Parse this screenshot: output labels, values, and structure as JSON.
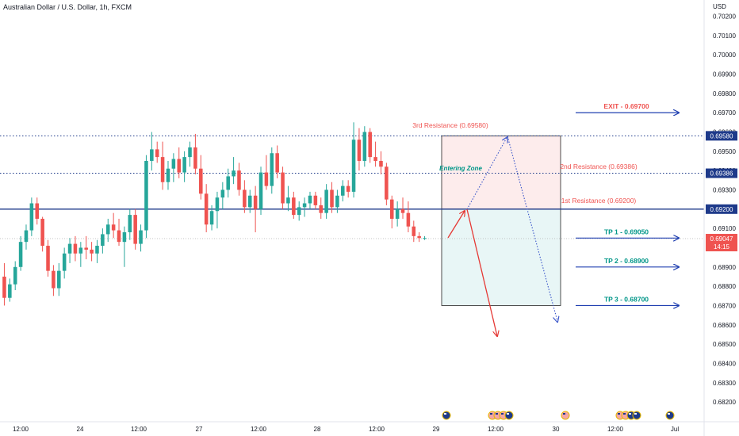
{
  "title": "Australian Dollar / U.S. Dollar, 1h, FXCM",
  "price_axis_label": "USD",
  "colors": {
    "up": "#26a69a",
    "down": "#ef5350",
    "level_line": "#1e3a8a",
    "arrow_blue": "#1f3fb0",
    "arrow_red": "#e53935",
    "zone_red": "#fdecec",
    "zone_green": "#e8f6f6",
    "label_red": "#ef5350",
    "label_teal": "#009688",
    "dotted_blue": "#3a55c9"
  },
  "chart_data": {
    "type": "candlestick",
    "title": "Australian Dollar / U.S. Dollar, 1h, FXCM",
    "ylim": [
      0.6815,
      0.7025
    ],
    "y_ticks": [
      "0.70200",
      "0.70100",
      "0.70000",
      "0.69900",
      "0.69800",
      "0.69700",
      "0.69600",
      "0.69500",
      "0.69400",
      "0.69300",
      "0.69200",
      "0.69100",
      "0.69000",
      "0.68900",
      "0.68800",
      "0.68700",
      "0.68600",
      "0.68500",
      "0.68400",
      "0.68300",
      "0.68200"
    ],
    "x_ticks": [
      "12:00",
      "24",
      "12:00",
      "27",
      "12:00",
      "28",
      "12:00",
      "29",
      "12:00",
      "30",
      "12:00",
      "Jul"
    ],
    "grid": false,
    "candles": [
      [
        0.6885,
        0.6892,
        0.687,
        0.6874
      ],
      [
        0.6874,
        0.6884,
        0.6872,
        0.6881
      ],
      [
        0.6881,
        0.6893,
        0.6878,
        0.689
      ],
      [
        0.689,
        0.6906,
        0.6888,
        0.6903
      ],
      [
        0.6903,
        0.6912,
        0.6899,
        0.6909
      ],
      [
        0.6909,
        0.6926,
        0.6906,
        0.6923
      ],
      [
        0.6923,
        0.6926,
        0.6912,
        0.6915
      ],
      [
        0.6915,
        0.6916,
        0.6898,
        0.6901
      ],
      [
        0.6901,
        0.6904,
        0.6885,
        0.6888
      ],
      [
        0.6888,
        0.6891,
        0.6875,
        0.6879
      ],
      [
        0.6879,
        0.6892,
        0.6875,
        0.6888
      ],
      [
        0.6888,
        0.69,
        0.6884,
        0.6897
      ],
      [
        0.6897,
        0.6905,
        0.6892,
        0.6902
      ],
      [
        0.6902,
        0.6906,
        0.6893,
        0.6897
      ],
      [
        0.6897,
        0.6903,
        0.689,
        0.69
      ],
      [
        0.69,
        0.6906,
        0.6894,
        0.6899
      ],
      [
        0.6899,
        0.6903,
        0.6893,
        0.6897
      ],
      [
        0.6897,
        0.6904,
        0.6892,
        0.6901
      ],
      [
        0.6901,
        0.691,
        0.6897,
        0.6907
      ],
      [
        0.6907,
        0.6915,
        0.6903,
        0.6912
      ],
      [
        0.6912,
        0.6918,
        0.6905,
        0.6909
      ],
      [
        0.6909,
        0.6915,
        0.6901,
        0.6903
      ],
      [
        0.6903,
        0.6911,
        0.689,
        0.6908
      ],
      [
        0.6908,
        0.692,
        0.6904,
        0.6917
      ],
      [
        0.6917,
        0.692,
        0.6899,
        0.6902
      ],
      [
        0.6902,
        0.6912,
        0.6898,
        0.6909
      ],
      [
        0.6909,
        0.6948,
        0.6905,
        0.6945
      ],
      [
        0.6945,
        0.696,
        0.694,
        0.6951
      ],
      [
        0.6951,
        0.6955,
        0.6944,
        0.6947
      ],
      [
        0.6947,
        0.6955,
        0.693,
        0.6934
      ],
      [
        0.6934,
        0.6945,
        0.693,
        0.6941
      ],
      [
        0.6941,
        0.6949,
        0.6934,
        0.6946
      ],
      [
        0.6946,
        0.6952,
        0.6936,
        0.6939
      ],
      [
        0.6939,
        0.695,
        0.6934,
        0.6947
      ],
      [
        0.6947,
        0.6955,
        0.6942,
        0.6952
      ],
      [
        0.6952,
        0.6959,
        0.6938,
        0.6941
      ],
      [
        0.6941,
        0.6948,
        0.6925,
        0.6928
      ],
      [
        0.6928,
        0.6933,
        0.6908,
        0.6912
      ],
      [
        0.6912,
        0.6922,
        0.6909,
        0.6919
      ],
      [
        0.6919,
        0.6929,
        0.691,
        0.6926
      ],
      [
        0.6926,
        0.6934,
        0.692,
        0.693
      ],
      [
        0.693,
        0.6941,
        0.6926,
        0.6937
      ],
      [
        0.6937,
        0.6947,
        0.6933,
        0.694
      ],
      [
        0.694,
        0.6944,
        0.6927,
        0.693
      ],
      [
        0.693,
        0.6935,
        0.6918,
        0.6921
      ],
      [
        0.6921,
        0.693,
        0.6918,
        0.6927
      ],
      [
        0.6927,
        0.6932,
        0.6908,
        0.692
      ],
      [
        0.692,
        0.6942,
        0.6917,
        0.6939
      ],
      [
        0.6939,
        0.6948,
        0.693,
        0.6932
      ],
      [
        0.6932,
        0.6952,
        0.6928,
        0.6949
      ],
      [
        0.6949,
        0.6953,
        0.6936,
        0.6939
      ],
      [
        0.6939,
        0.6942,
        0.692,
        0.6923
      ],
      [
        0.6923,
        0.6932,
        0.6919,
        0.6926
      ],
      [
        0.6926,
        0.6929,
        0.6915,
        0.6917
      ],
      [
        0.6917,
        0.6924,
        0.6914,
        0.6921
      ],
      [
        0.6921,
        0.6926,
        0.6916,
        0.6923
      ],
      [
        0.6923,
        0.6929,
        0.692,
        0.6927
      ],
      [
        0.6927,
        0.6929,
        0.692,
        0.6922
      ],
      [
        0.6922,
        0.6926,
        0.6915,
        0.6918
      ],
      [
        0.6918,
        0.6933,
        0.6915,
        0.693
      ],
      [
        0.693,
        0.6934,
        0.6918,
        0.6921
      ],
      [
        0.6921,
        0.693,
        0.6918,
        0.6927
      ],
      [
        0.6927,
        0.6935,
        0.6924,
        0.6932
      ],
      [
        0.6932,
        0.6935,
        0.6926,
        0.6929
      ],
      [
        0.6929,
        0.6965,
        0.6926,
        0.6956
      ],
      [
        0.6956,
        0.6962,
        0.694,
        0.6945
      ],
      [
        0.6945,
        0.6963,
        0.6942,
        0.696
      ],
      [
        0.696,
        0.6962,
        0.6944,
        0.6947
      ],
      [
        0.6947,
        0.6955,
        0.6942,
        0.6945
      ],
      [
        0.6945,
        0.695,
        0.6938,
        0.6942
      ],
      [
        0.6942,
        0.6944,
        0.6922,
        0.6925
      ],
      [
        0.6925,
        0.6927,
        0.691,
        0.6915
      ],
      [
        0.6915,
        0.6924,
        0.6911,
        0.692
      ],
      [
        0.692,
        0.6926,
        0.6915,
        0.6918
      ],
      [
        0.6918,
        0.6924,
        0.6908,
        0.6911
      ],
      [
        0.6911,
        0.6914,
        0.6903,
        0.6906
      ],
      [
        0.6906,
        0.6908,
        0.6903,
        0.6905
      ],
      [
        0.6905,
        0.6906,
        0.6904,
        0.6905
      ]
    ],
    "current_price": "0.69047",
    "countdown": "14:15"
  },
  "levels": [
    {
      "price_label": "0.69580",
      "text": "3rd Resistance (0.69580)",
      "color": "#ef5350",
      "style": "dotted"
    },
    {
      "price_label": "0.69386",
      "text": "2nd Resistance (0.69386)",
      "color": "#ef5350",
      "style": "dotted"
    },
    {
      "price_label": "0.69200",
      "text": "1st Resistance (0.69200)",
      "color": "#ef5350",
      "style": "solid"
    }
  ],
  "targets": [
    {
      "text": "EXIT - 0.69700",
      "color": "#ef5350"
    },
    {
      "text": "TP 1 - 0.69050",
      "color": "#009688"
    },
    {
      "text": "TP 2 - 0.68900",
      "color": "#009688"
    },
    {
      "text": "TP 3 - 0.68700",
      "color": "#009688"
    }
  ],
  "entering_zone": "Entering Zone",
  "event_icons": [
    "au-flag-icon",
    "us-flag-icon",
    "us-flag-icon",
    "us-flag-icon",
    "au-flag-icon",
    "us-flag-icon",
    "us-flag-icon",
    "us-flag-icon",
    "au-flag-icon",
    "au-flag-icon",
    "au-flag-icon"
  ]
}
